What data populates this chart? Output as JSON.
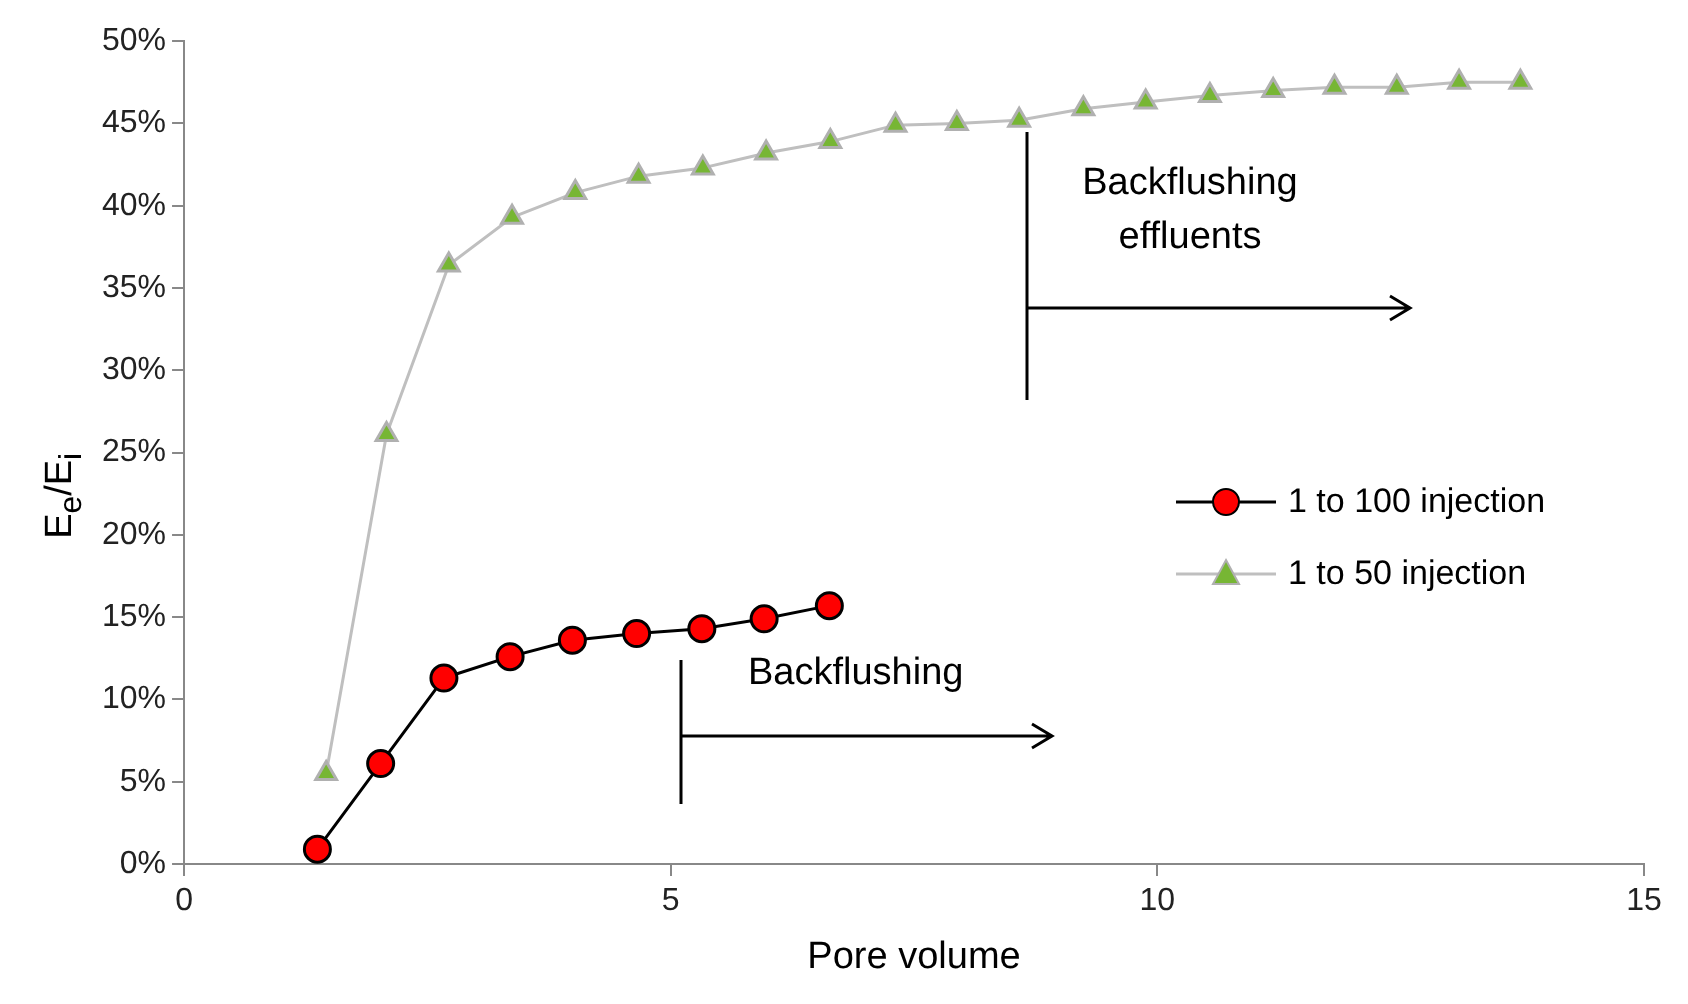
{
  "chart_data": {
    "type": "line",
    "xlabel": "Pore volume",
    "ylabel": "E$_{e}$/E$_{i}$",
    "xlim": [
      0,
      15
    ],
    "xticks": [
      0,
      5,
      10,
      15
    ],
    "ylim": [
      0,
      50
    ],
    "yticks": [
      {
        "value": 0,
        "label": "0%"
      },
      {
        "value": 5,
        "label": "5%"
      },
      {
        "value": 10,
        "label": "10%"
      },
      {
        "value": 15,
        "label": "15%"
      },
      {
        "value": 20,
        "label": "20%"
      },
      {
        "value": 25,
        "label": "25%"
      },
      {
        "value": 30,
        "label": "30%"
      },
      {
        "value": 35,
        "label": "35%"
      },
      {
        "value": 40,
        "label": "40%"
      },
      {
        "value": 45,
        "label": "45%"
      },
      {
        "value": 50,
        "label": "50%"
      }
    ],
    "grid": false,
    "legend": "right",
    "series": [
      {
        "name": "1 to 100 injection",
        "color": "#ff0000",
        "marker": "circle",
        "x": [
          1.37,
          2.02,
          2.67,
          3.35,
          3.99,
          4.65,
          5.32,
          5.96,
          6.63
        ],
        "values": [
          0.9,
          6.1,
          11.3,
          12.6,
          13.6,
          14.0,
          14.3,
          14.9,
          15.7
        ]
      },
      {
        "name": "1 to 50 injection",
        "color": "#77b634",
        "marker": "triangle",
        "x": [
          1.46,
          2.08,
          2.72,
          3.37,
          4.02,
          4.67,
          5.33,
          5.98,
          6.64,
          7.31,
          7.94,
          8.58,
          9.24,
          9.88,
          10.54,
          11.19,
          11.82,
          12.46,
          13.1,
          13.73
        ],
        "values": [
          5.5,
          26.1,
          36.4,
          39.3,
          40.8,
          41.8,
          42.3,
          43.2,
          43.9,
          44.9,
          45.0,
          45.2,
          45.9,
          46.3,
          46.7,
          47.0,
          47.2,
          47.2,
          47.5,
          47.5
        ]
      }
    ],
    "annotations": [
      "Backflushing effluents",
      "Backflushing"
    ]
  }
}
